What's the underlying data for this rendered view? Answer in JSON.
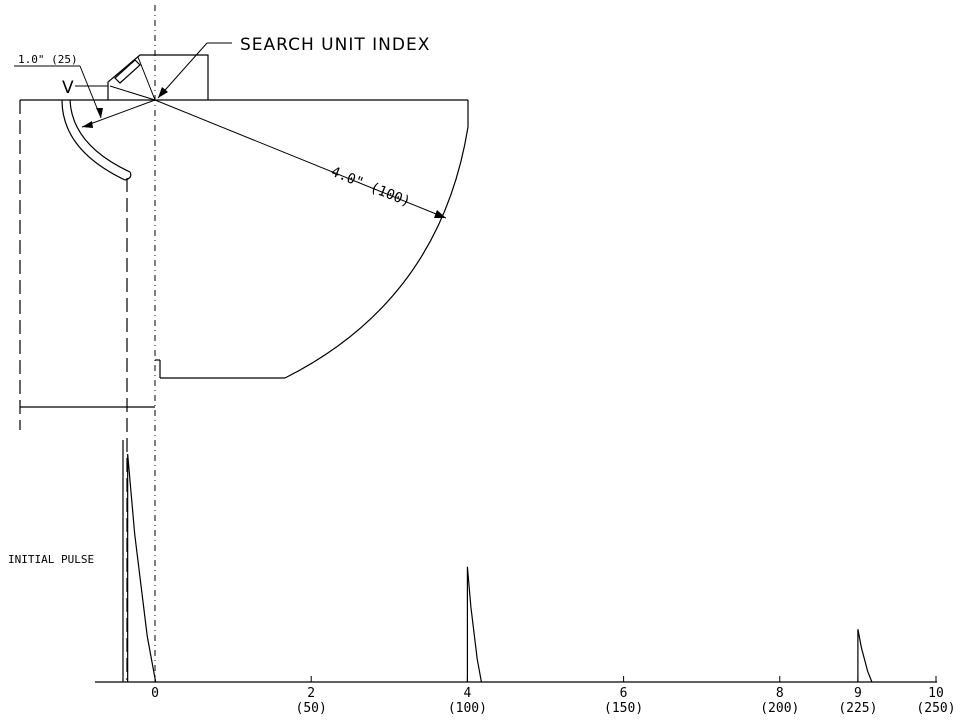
{
  "labels": {
    "search_unit_index": "SEARCH UNIT INDEX",
    "one_inch": "1.0\" (25)",
    "v_mark": "V",
    "four_inch": "4.0\" (100)",
    "initial_pulse": "INITIAL PULSE"
  },
  "axis": {
    "ticks": [
      {
        "value": 0,
        "top": "0",
        "bottom": ""
      },
      {
        "value": 2,
        "top": "2",
        "bottom": "(50)"
      },
      {
        "value": 4,
        "top": "4",
        "bottom": "(100)"
      },
      {
        "value": 6,
        "top": "6",
        "bottom": "(150)"
      },
      {
        "value": 8,
        "top": "8",
        "bottom": "(200)"
      },
      {
        "value": 9,
        "top": "9",
        "bottom": "(225)"
      },
      {
        "value": 10,
        "top": "10",
        "bottom": "(250)"
      }
    ]
  },
  "signals": [
    {
      "name": "initial-pulse",
      "position": -0.35,
      "amplitude": 0.95
    },
    {
      "name": "echo-4",
      "position": 4.0,
      "amplitude": 0.48
    },
    {
      "name": "echo-9",
      "position": 9.0,
      "amplitude": 0.22
    }
  ]
}
